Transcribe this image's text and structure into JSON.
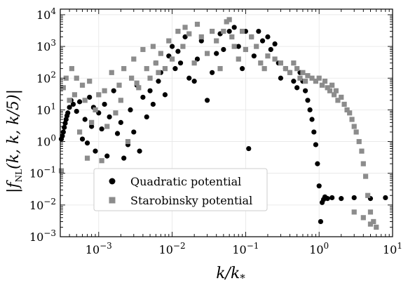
{
  "chart_data": {
    "type": "scatter",
    "xscale": "log",
    "yscale": "log",
    "xlim": [
      0.0003,
      10
    ],
    "ylim": [
      0.001,
      15000
    ],
    "xlabel": "k/k_*",
    "ylabel": "|f_NL(k, k, k/5)|",
    "x_ticks": [
      0.001,
      0.01,
      0.1,
      1,
      10
    ],
    "x_tick_labels": [
      "10^-3",
      "10^-2",
      "10^-1",
      "10^0",
      "10^1"
    ],
    "y_ticks": [
      0.001,
      0.01,
      0.1,
      1,
      10,
      100,
      1000,
      10000
    ],
    "y_tick_labels": [
      "10^-3",
      "10^-2",
      "10^-1",
      "10^0",
      "10^1",
      "10^2",
      "10^3",
      "10^4"
    ],
    "grid": true,
    "legend_position": "lower-left",
    "series": [
      {
        "name": "Quadratic potential",
        "marker": "circle",
        "color": "#000000",
        "points": [
          [
            0.00031,
            1.2
          ],
          [
            0.00032,
            1.5
          ],
          [
            0.00033,
            2.0
          ],
          [
            0.00034,
            2.8
          ],
          [
            0.00035,
            3.8
          ],
          [
            0.00036,
            5.0
          ],
          [
            0.00037,
            6.5
          ],
          [
            0.00038,
            8.0
          ],
          [
            0.0004,
            12
          ],
          [
            0.00042,
            20
          ],
          [
            0.00045,
            15
          ],
          [
            0.0005,
            9
          ],
          [
            0.00055,
            18
          ],
          [
            0.0006,
            1.2
          ],
          [
            0.00065,
            5
          ],
          [
            0.0007,
            0.9
          ],
          [
            0.00075,
            25
          ],
          [
            0.0008,
            3
          ],
          [
            0.00085,
            12
          ],
          [
            0.0009,
            0.5
          ],
          [
            0.001,
            8
          ],
          [
            0.0011,
            2.5
          ],
          [
            0.0012,
            15
          ],
          [
            0.0013,
            0.35
          ],
          [
            0.0014,
            6
          ],
          [
            0.0016,
            40
          ],
          [
            0.0018,
            1.8
          ],
          [
            0.002,
            4
          ],
          [
            0.0022,
            0.3
          ],
          [
            0.0025,
            0.8
          ],
          [
            0.0027,
            10
          ],
          [
            0.003,
            2
          ],
          [
            0.0033,
            60
          ],
          [
            0.0036,
            0.5
          ],
          [
            0.004,
            25
          ],
          [
            0.0045,
            6
          ],
          [
            0.005,
            40
          ],
          [
            0.0055,
            15
          ],
          [
            0.006,
            300
          ],
          [
            0.0065,
            80
          ],
          [
            0.007,
            150
          ],
          [
            0.008,
            30
          ],
          [
            0.009,
            500
          ],
          [
            0.01,
            1000
          ],
          [
            0.011,
            200
          ],
          [
            0.012,
            700
          ],
          [
            0.013,
            300
          ],
          [
            0.015,
            2000
          ],
          [
            0.017,
            100
          ],
          [
            0.02,
            80
          ],
          [
            0.022,
            400
          ],
          [
            0.025,
            1500
          ],
          [
            0.03,
            20
          ],
          [
            0.035,
            150
          ],
          [
            0.04,
            600
          ],
          [
            0.045,
            2500
          ],
          [
            0.05,
            800
          ],
          [
            0.06,
            3000
          ],
          [
            0.07,
            4000
          ],
          [
            0.08,
            1000
          ],
          [
            0.09,
            200
          ],
          [
            0.1,
            3000
          ],
          [
            0.11,
            0.6
          ],
          [
            0.12,
            2000
          ],
          [
            0.13,
            500
          ],
          [
            0.15,
            3000
          ],
          [
            0.17,
            1500
          ],
          [
            0.2,
            2000
          ],
          [
            0.22,
            800
          ],
          [
            0.25,
            1200
          ],
          [
            0.28,
            300
          ],
          [
            0.3,
            100
          ],
          [
            0.35,
            200
          ],
          [
            0.4,
            150
          ],
          [
            0.45,
            80
          ],
          [
            0.5,
            50
          ],
          [
            0.55,
            150
          ],
          [
            0.6,
            80
          ],
          [
            0.65,
            40
          ],
          [
            0.7,
            20
          ],
          [
            0.75,
            10
          ],
          [
            0.8,
            5
          ],
          [
            0.85,
            2
          ],
          [
            0.9,
            0.8
          ],
          [
            0.95,
            0.2
          ],
          [
            1.0,
            0.04
          ],
          [
            1.05,
            0.003
          ],
          [
            1.1,
            0.012
          ],
          [
            1.15,
            0.015
          ],
          [
            1.2,
            0.018
          ],
          [
            1.3,
            0.016
          ],
          [
            1.5,
            0.017
          ],
          [
            2.0,
            0.016
          ],
          [
            3.0,
            0.017
          ],
          [
            5.0,
            0.016
          ],
          [
            8.0,
            0.017
          ]
        ]
      },
      {
        "name": "Starobinsky potential",
        "marker": "square",
        "color": "#8c8c8c",
        "points": [
          [
            0.00031,
            0.12
          ],
          [
            0.00033,
            50
          ],
          [
            0.00036,
            100
          ],
          [
            0.0004,
            20
          ],
          [
            0.00043,
            200
          ],
          [
            0.00047,
            30
          ],
          [
            0.0005,
            100
          ],
          [
            0.00055,
            2
          ],
          [
            0.0006,
            60
          ],
          [
            0.00065,
            20
          ],
          [
            0.0007,
            0.3
          ],
          [
            0.00075,
            80
          ],
          [
            0.0008,
            4
          ],
          [
            0.0009,
            10
          ],
          [
            0.001,
            30
          ],
          [
            0.0011,
            0.25
          ],
          [
            0.0012,
            40
          ],
          [
            0.0013,
            3
          ],
          [
            0.0015,
            150
          ],
          [
            0.0017,
            8
          ],
          [
            0.0019,
            60
          ],
          [
            0.002,
            20
          ],
          [
            0.0022,
            200
          ],
          [
            0.0025,
            1
          ],
          [
            0.0028,
            100
          ],
          [
            0.003,
            400
          ],
          [
            0.0033,
            70
          ],
          [
            0.0035,
            50
          ],
          [
            0.004,
            800
          ],
          [
            0.0045,
            200
          ],
          [
            0.005,
            100
          ],
          [
            0.0055,
            1000
          ],
          [
            0.006,
            300
          ],
          [
            0.0065,
            150
          ],
          [
            0.007,
            600
          ],
          [
            0.008,
            200
          ],
          [
            0.009,
            1500
          ],
          [
            0.01,
            400
          ],
          [
            0.012,
            3000
          ],
          [
            0.014,
            1000
          ],
          [
            0.015,
            4000
          ],
          [
            0.017,
            2500
          ],
          [
            0.02,
            300
          ],
          [
            0.022,
            5000
          ],
          [
            0.025,
            2000
          ],
          [
            0.03,
            600
          ],
          [
            0.035,
            3000
          ],
          [
            0.04,
            1500
          ],
          [
            0.045,
            200
          ],
          [
            0.05,
            3000
          ],
          [
            0.055,
            6000
          ],
          [
            0.06,
            7000
          ],
          [
            0.065,
            2000
          ],
          [
            0.07,
            1000
          ],
          [
            0.08,
            400
          ],
          [
            0.09,
            3000
          ],
          [
            0.1,
            800
          ],
          [
            0.12,
            2000
          ],
          [
            0.14,
            1000
          ],
          [
            0.16,
            300
          ],
          [
            0.18,
            200
          ],
          [
            0.2,
            500
          ],
          [
            0.25,
            400
          ],
          [
            0.3,
            300
          ],
          [
            0.35,
            200
          ],
          [
            0.4,
            150
          ],
          [
            0.45,
            300
          ],
          [
            0.5,
            200
          ],
          [
            0.55,
            100
          ],
          [
            0.6,
            150
          ],
          [
            0.65,
            80
          ],
          [
            0.7,
            120
          ],
          [
            0.8,
            100
          ],
          [
            0.9,
            80
          ],
          [
            1.0,
            100
          ],
          [
            1.1,
            60
          ],
          [
            1.2,
            80
          ],
          [
            1.3,
            50
          ],
          [
            1.4,
            40
          ],
          [
            1.5,
            60
          ],
          [
            1.6,
            30
          ],
          [
            1.7,
            40
          ],
          [
            1.8,
            20
          ],
          [
            2.0,
            25
          ],
          [
            2.2,
            15
          ],
          [
            2.4,
            10
          ],
          [
            2.6,
            8
          ],
          [
            2.8,
            5
          ],
          [
            3.0,
            3
          ],
          [
            3.2,
            2
          ],
          [
            3.5,
            1
          ],
          [
            3.8,
            0.5
          ],
          [
            4.0,
            0.2
          ],
          [
            4.3,
            0.08
          ],
          [
            4.6,
            0.02
          ],
          [
            5.0,
            0.006
          ],
          [
            5.5,
            0.003
          ],
          [
            6.0,
            0.002
          ],
          [
            3.0,
            0.006
          ],
          [
            4.0,
            0.004
          ],
          [
            5.0,
            0.0025
          ]
        ]
      }
    ]
  }
}
